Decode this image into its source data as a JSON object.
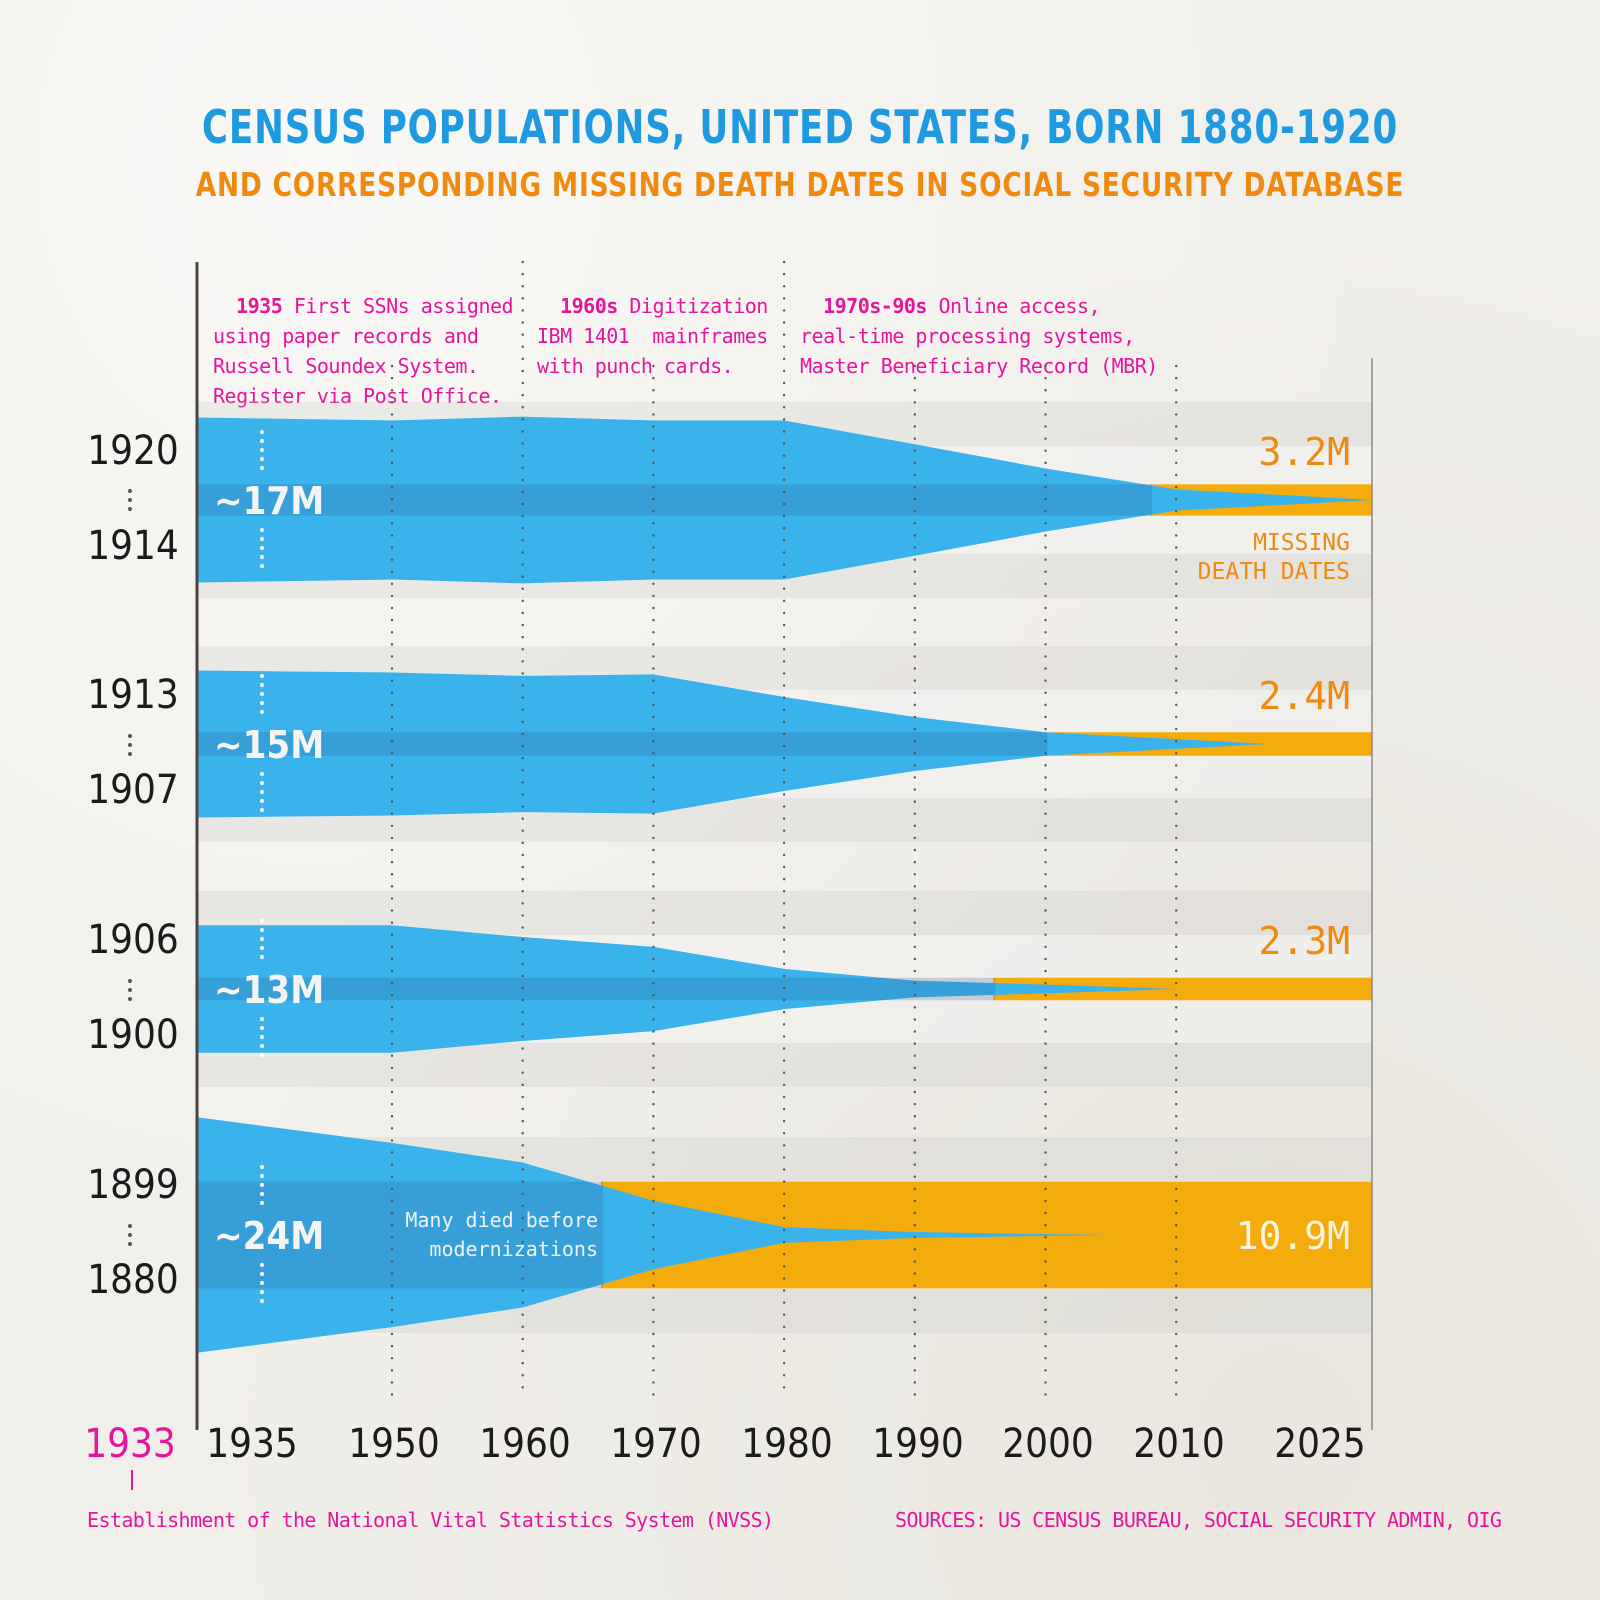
{
  "header": {
    "title": "CENSUS POPULATIONS, UNITED STATES, BORN 1880-1920",
    "subtitle": "AND CORRESPONDING MISSING DEATH DATES IN SOCIAL SECURITY DATABASE"
  },
  "colors": {
    "population": "#3ab3ec",
    "missing": "#f4ac0c",
    "title": "#1f9ae0",
    "subtitle": "#ef8a10",
    "annotation": "#e6159c",
    "value_label": "#ef8a10"
  },
  "annotations": [
    {
      "year_bold": "1935",
      "lines": [
        "First SSNs assigned",
        "using paper records and",
        "Russell Soundex System.",
        "Register via Post Office."
      ]
    },
    {
      "year_bold": "1960s",
      "lines": [
        "Digitization",
        "IBM 1401  mainframes",
        "with punch cards."
      ]
    },
    {
      "year_bold": "1970s-90s",
      "lines": [
        "Online access,",
        "real-time processing systems,",
        "Master Beneficiary Record (MBR)"
      ]
    }
  ],
  "footer": {
    "nvss_year": "1933",
    "nvss_note": "Establishment of the National Vital Statistics System (NVSS)",
    "sources": "SOURCES: US CENSUS BUREAU, SOCIAL SECURITY ADMIN, OIG"
  },
  "chart_data": {
    "type": "area",
    "title": "CENSUS POPULATIONS, UNITED STATES, BORN 1880-1920",
    "subtitle": "AND CORRESPONDING MISSING DEATH DATES IN SOCIAL SECURITY DATABASE",
    "x_ticks": [
      "1935",
      "1950",
      "1960",
      "1970",
      "1980",
      "1990",
      "2000",
      "2010",
      "2025"
    ],
    "x_range": [
      1935,
      2025
    ],
    "grid": "vertical dotted lines at decades 1950-2010",
    "missing_label": [
      "MISSING",
      "DEATH DATES"
    ],
    "cohorts": [
      {
        "born_from": "1914",
        "born_to": "1920",
        "census_label": "~17M",
        "census_population_millions": 17,
        "missing_label": "3.2M",
        "missing_death_dates_millions": 3.2,
        "living_population_millions": {
          "1935": 17,
          "1950": 16.4,
          "1960": 17.2,
          "1970": 16.4,
          "1980": 16.4,
          "1990": 11.5,
          "2000": 6.5,
          "2010": 2.2,
          "2025": 0
        },
        "missing_starts": 2008
      },
      {
        "born_from": "1907",
        "born_to": "1913",
        "census_label": "~15M",
        "census_population_millions": 15,
        "missing_label": "2.4M",
        "missing_death_dates_millions": 2.4,
        "living_population_millions": {
          "1935": 15,
          "1950": 14.6,
          "1960": 13.9,
          "1970": 14.2,
          "1980": 9.6,
          "1990": 5.5,
          "2000": 2.4,
          "2010": 1.0,
          "2017": 0
        },
        "missing_starts": 2000
      },
      {
        "born_from": "1900",
        "born_to": "1906",
        "census_label": "~13M",
        "census_population_millions": 13,
        "missing_label": "2.3M",
        "missing_death_dates_millions": 2.3,
        "living_population_millions": {
          "1935": 13,
          "1950": 13,
          "1960": 10.6,
          "1970": 8.6,
          "1980": 4.1,
          "1990": 1.7,
          "2000": 0.9,
          "2010": 0
        },
        "missing_starts": 1996
      },
      {
        "born_from": "1880",
        "born_to": "1899",
        "census_label": "~24M",
        "census_population_millions": 24,
        "missing_label": "10.9M",
        "missing_death_dates_millions": 10.9,
        "note": [
          "Many died before",
          "modernizations"
        ],
        "living_population_millions": {
          "1935": 24,
          "1950": 18.8,
          "1960": 14.8,
          "1970": 7.0,
          "1980": 1.6,
          "1990": 0.6,
          "2005": 0
        },
        "missing_starts": 1966
      }
    ]
  }
}
